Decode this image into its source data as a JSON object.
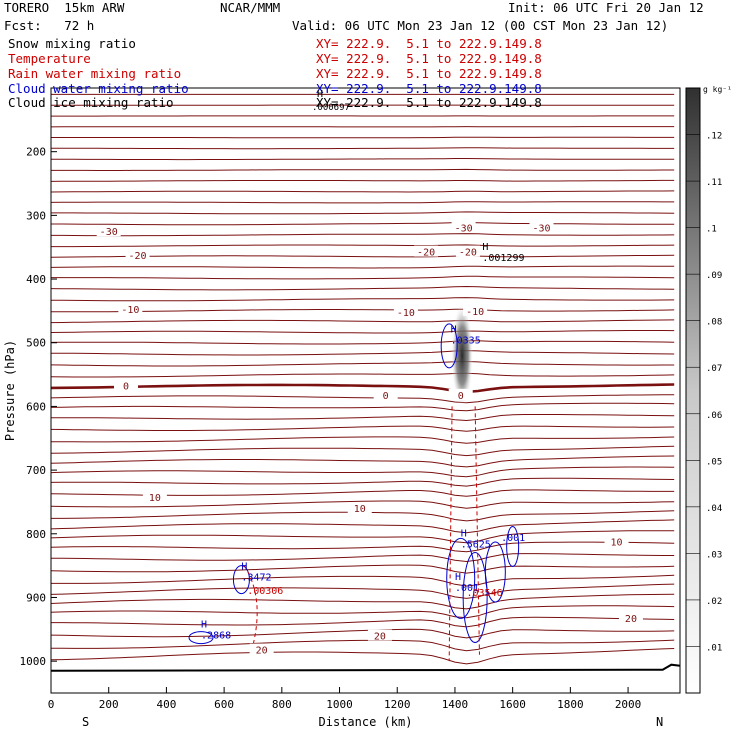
{
  "header": {
    "model": "TORERO  15km ARW",
    "center": "NCAR/MMM",
    "init": "Init: 06 UTC Fri 20 Jan 12",
    "fcst": "Fcst:   72 h",
    "valid": "Valid: 06 UTC Mon 23 Jan 12 (00 CST Mon 23 Jan 12)"
  },
  "fields": [
    {
      "name": "Snow mixing ratio",
      "xy": "XY= 222.9.  5.1 to 222.9.149.8",
      "color": "#000000"
    },
    {
      "name": "Temperature",
      "xy": "XY= 222.9.  5.1 to 222.9.149.8",
      "color": "#cc0000"
    },
    {
      "name": "Rain water mixing ratio",
      "xy": "XY= 222.9.  5.1 to 222.9.149.8",
      "color": "#cc0000"
    },
    {
      "name": "Cloud water mixing ratio",
      "xy": "XY= 222.9.  5.1 to 222.9.149.8",
      "color": "#0000cc"
    },
    {
      "name": "Cloud ice mixing ratio",
      "xy": "XY= 222.9.  5.1 to 222.9.149.8",
      "color": "#000000"
    }
  ],
  "overlap_label": {
    "h": "H",
    "value": ".000697"
  },
  "chart_data": {
    "type": "cross-section",
    "xlabel": "Distance (km)",
    "ylabel": "Pressure (hPa)",
    "xlim": [
      0,
      2180
    ],
    "ylim": [
      1050,
      100
    ],
    "x_ticks": [
      0,
      200,
      400,
      600,
      800,
      1000,
      1200,
      1400,
      1600,
      1800,
      2000
    ],
    "y_ticks": [
      200,
      300,
      400,
      500,
      600,
      700,
      800,
      900,
      1000
    ],
    "x_end_labels": {
      "left": "S",
      "right": "N"
    },
    "colorbar": {
      "unit": "g kg⁻¹",
      "min": 0,
      "max": 0.13,
      "ticks": [
        0.01,
        0.02,
        0.03,
        0.04,
        0.05,
        0.06,
        0.07,
        0.08,
        0.09,
        0.1,
        0.11,
        0.12
      ],
      "tick_labels": [
        ".01",
        ".02",
        ".03",
        ".04",
        ".05",
        ".06",
        ".07",
        ".08",
        ".09",
        ".1",
        ".11",
        ".12"
      ]
    },
    "temperature_labels": [
      {
        "x": 200,
        "p": 328,
        "text": "-30"
      },
      {
        "x": 1430,
        "p": 322,
        "text": "-30"
      },
      {
        "x": 1700,
        "p": 322,
        "text": "-30"
      },
      {
        "x": 300,
        "p": 365,
        "text": "-20"
      },
      {
        "x": 1300,
        "p": 360,
        "text": "-20"
      },
      {
        "x": 1445,
        "p": 360,
        "text": "-20"
      },
      {
        "x": 275,
        "p": 450,
        "text": "-10"
      },
      {
        "x": 1230,
        "p": 455,
        "text": "-10"
      },
      {
        "x": 1470,
        "p": 453,
        "text": "-10"
      },
      {
        "x": 260,
        "p": 570,
        "text": "0"
      },
      {
        "x": 1160,
        "p": 585,
        "text": "0"
      },
      {
        "x": 1420,
        "p": 585,
        "text": "0"
      },
      {
        "x": 360,
        "p": 745,
        "text": "10"
      },
      {
        "x": 1070,
        "p": 763,
        "text": "10"
      },
      {
        "x": 1960,
        "p": 815,
        "text": "10"
      },
      {
        "x": 1140,
        "p": 963,
        "text": "20"
      },
      {
        "x": 2010,
        "p": 935,
        "text": "20"
      },
      {
        "x": 730,
        "p": 985,
        "text": "20"
      }
    ],
    "extrema": [
      {
        "label": "H",
        "value": ".001299",
        "x": 1495,
        "p": 370,
        "color": "#000000"
      },
      {
        "label": "H",
        "value": ".0335",
        "x": 1385,
        "p": 500,
        "color": "#0000cc"
      },
      {
        "label": "H",
        "value": ".3472",
        "x": 660,
        "p": 872,
        "color": "#0000cc"
      },
      {
        "label": "",
        "value": ".00306",
        "x": 680,
        "p": 893,
        "color": "#cc0000"
      },
      {
        "label": "H",
        "value": ".2868",
        "x": 520,
        "p": 963,
        "color": "#0000cc"
      },
      {
        "label": "H",
        "value": ".5625",
        "x": 1420,
        "p": 820,
        "color": "#0000cc"
      },
      {
        "label": "",
        "value": ".001",
        "x": 1560,
        "p": 810,
        "color": "#0000cc"
      },
      {
        "label": "H",
        "value": ".001",
        "x": 1400,
        "p": 888,
        "color": "#0000cc"
      },
      {
        "label": "",
        "value": ".03546",
        "x": 1440,
        "p": 896,
        "color": "#cc0000"
      }
    ],
    "terrain_p": 1015,
    "cloud_ice_column": {
      "x": 1425,
      "p_top": 450,
      "p_bottom": 590,
      "peak": 0.12
    }
  }
}
